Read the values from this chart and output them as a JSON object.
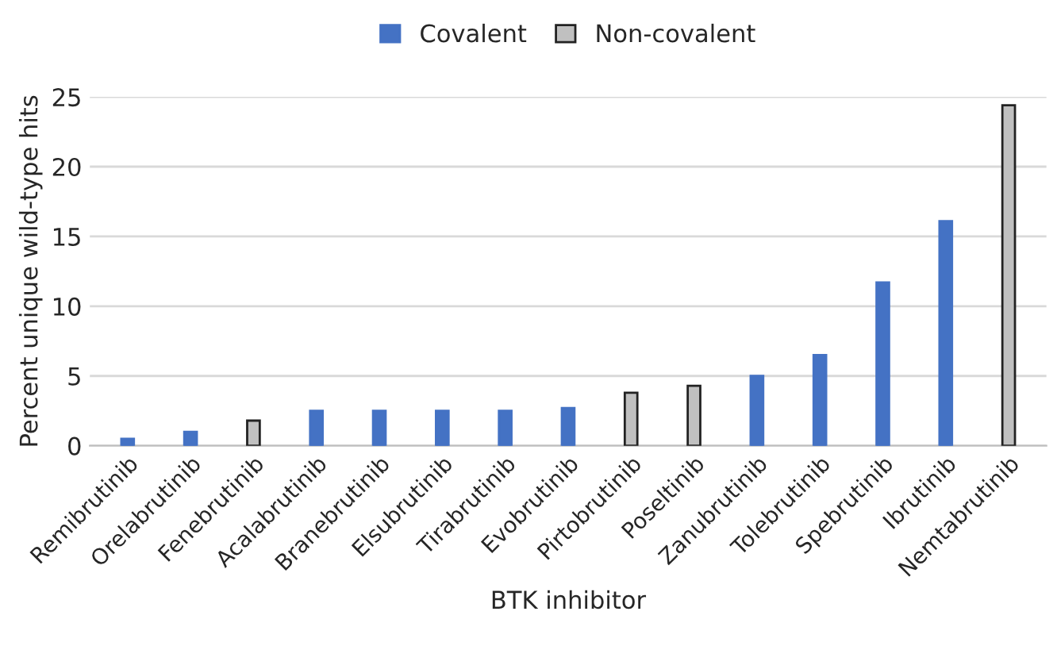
{
  "chart_data": {
    "type": "bar",
    "stacked": true,
    "xlabel": "BTK inhibitor",
    "ylabel": "Percent unique wild-type hits",
    "categories": [
      "Remibrutinib",
      "Orelabrutinib",
      "Fenebrutinib",
      "Acalabrutinib",
      "Branebrutinib",
      "Elsubrutinib",
      "Tirabrutinib",
      "Evobrutinib",
      "Pirtobrutinib",
      "Poseltinib",
      "Zanubrutinib",
      "Tolebrutinib",
      "Spebrutinib",
      "Ibrutinib",
      "Nemtabrutinib"
    ],
    "series": [
      {
        "name": "Covalent",
        "color": "#4472c4",
        "values": [
          0.5,
          1.0,
          null,
          2.5,
          2.5,
          2.5,
          2.5,
          2.7,
          null,
          null,
          5.0,
          6.5,
          11.7,
          16.1,
          null
        ]
      },
      {
        "name": "Non-covalent",
        "color": "#c0c0c0",
        "values": [
          null,
          null,
          1.8,
          null,
          null,
          null,
          null,
          null,
          3.8,
          4.3,
          null,
          null,
          null,
          null,
          24.4
        ]
      }
    ],
    "ylim": [
      0,
      25
    ],
    "yticks": [
      0,
      5,
      10,
      15,
      20,
      25
    ],
    "grid": "y",
    "legend": "top"
  }
}
